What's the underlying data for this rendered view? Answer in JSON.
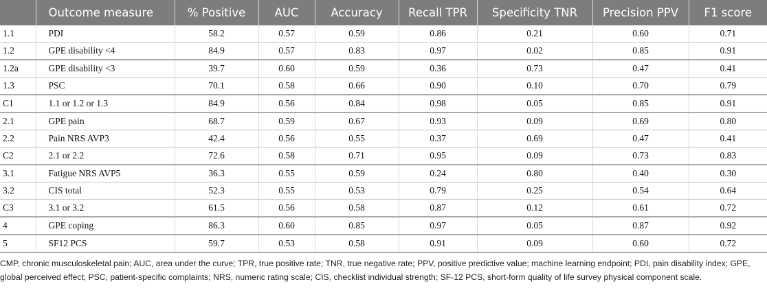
{
  "table": {
    "headers": [
      "",
      "Outcome measure",
      "% Positive",
      "AUC",
      "Accuracy",
      "Recall TPR",
      "Specificity TNR",
      "Precision PPV",
      "F1 score"
    ],
    "rows": [
      [
        "1.1",
        "PDI",
        "58.2",
        "0.57",
        "0.59",
        "0.86",
        "0.21",
        "0.60",
        "0.71"
      ],
      [
        "1.2",
        "GPE disability <4",
        "84.9",
        "0.57",
        "0.83",
        "0.97",
        "0.02",
        "0.85",
        "0.91"
      ],
      [
        "1.2a",
        "GPE disability <3",
        "39.7",
        "0.60",
        "0.59",
        "0.36",
        "0.73",
        "0.47",
        "0.41"
      ],
      [
        "1.3",
        "PSC",
        "70.1",
        "0.58",
        "0.66",
        "0.90",
        "0.10",
        "0.70",
        "0.79"
      ],
      [
        "C1",
        "1.1 or 1.2 or 1.3",
        "84.9",
        "0.56",
        "0.84",
        "0.98",
        "0.05",
        "0.85",
        "0.91"
      ],
      [
        "2.1",
        "GPE pain",
        "68.7",
        "0.59",
        "0.67",
        "0.93",
        "0.09",
        "0.69",
        "0.80"
      ],
      [
        "2.2",
        "Pain NRS AVP3",
        "42.4",
        "0.56",
        "0.55",
        "0.37",
        "0.69",
        "0.47",
        "0.41"
      ],
      [
        "C2",
        "2.1 or 2.2",
        "72.6",
        "0.58",
        "0.71",
        "0.95",
        "0.09",
        "0.73",
        "0.83"
      ],
      [
        "3.1",
        "Fatigue NRS AVP5",
        "36.3",
        "0.55",
        "0.59",
        "0.24",
        "0.80",
        "0.40",
        "0.30"
      ],
      [
        "3.2",
        "CIS total",
        "52.3",
        "0.55",
        "0.53",
        "0.79",
        "0.25",
        "0.54",
        "0.64"
      ],
      [
        "C3",
        "3.1 or 3.2",
        "61.5",
        "0.56",
        "0.58",
        "0.87",
        "0.12",
        "0.61",
        "0.72"
      ],
      [
        "4",
        "GPE coping",
        "86.3",
        "0.60",
        "0.85",
        "0.97",
        "0.05",
        "0.87",
        "0.92"
      ],
      [
        "5",
        "SF12 PCS",
        "59.7",
        "0.53",
        "0.58",
        "0.91",
        "0.09",
        "0.60",
        "0.72"
      ]
    ]
  },
  "footnote": "CMP, chronic musculoskeletal pain; AUC, area under the curve; TPR, true positive rate; TNR, true negative rate; PPV, positive predictive value; machine learning endpoint; PDI, pain disability index; GPE, global perceived effect; PSC, patient-specific complaints; NRS, numeric rating scale; CIS, checklist individual strength; SF-12 PCS, short-form quality of life survey physical component scale."
}
